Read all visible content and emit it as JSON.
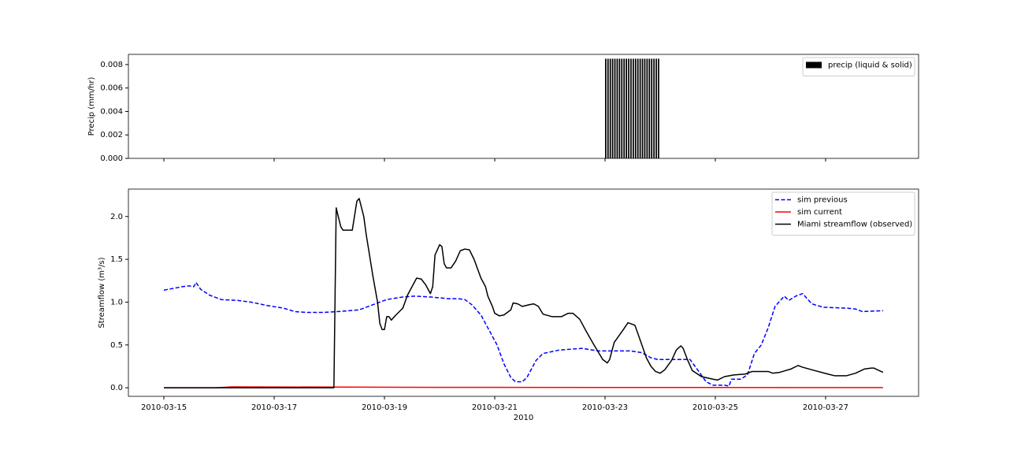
{
  "chart_data": [
    {
      "type": "bar",
      "ylabel": "Precip (mm/hr)",
      "xlim": [
        "2010-03-14 08:34",
        "2010-03-28 16:28"
      ],
      "xticks": [
        "2010-03-15",
        "2010-03-17",
        "2010-03-19",
        "2010-03-21",
        "2010-03-23",
        "2010-03-25",
        "2010-03-27"
      ],
      "show_xtick_labels": false,
      "ylim": [
        0,
        0.00887
      ],
      "yticks": [
        {
          "value": 0,
          "label": "0.000"
        },
        {
          "value": 0.002,
          "label": "0.002"
        },
        {
          "value": 0.004,
          "label": "0.004"
        },
        {
          "value": 0.006,
          "label": "0.006"
        },
        {
          "value": 0.008,
          "label": "0.008"
        }
      ],
      "legend": "upper right",
      "series": [
        {
          "name": "precip (liquid & solid)",
          "color": "#000000",
          "x": [
            "2010-03-23 00:00",
            "2010-03-23 01:00",
            "2010-03-23 02:00",
            "2010-03-23 03:00",
            "2010-03-23 04:00",
            "2010-03-23 05:00",
            "2010-03-23 06:00",
            "2010-03-23 07:00",
            "2010-03-23 08:00",
            "2010-03-23 09:00",
            "2010-03-23 10:00",
            "2010-03-23 11:00",
            "2010-03-23 12:00",
            "2010-03-23 13:00",
            "2010-03-23 14:00",
            "2010-03-23 15:00",
            "2010-03-23 16:00",
            "2010-03-23 17:00",
            "2010-03-23 18:00",
            "2010-03-23 19:00",
            "2010-03-23 20:00",
            "2010-03-23 21:00",
            "2010-03-23 22:00",
            "2010-03-23 23:00"
          ],
          "values": [
            0.0085,
            0.0085,
            0.0085,
            0.0085,
            0.0085,
            0.0085,
            0.0085,
            0.0085,
            0.0085,
            0.0085,
            0.0085,
            0.0085,
            0.0085,
            0.0085,
            0.0085,
            0.0085,
            0.0085,
            0.0085,
            0.0085,
            0.0085,
            0.0085,
            0.0085,
            0.0085,
            0.0085
          ]
        }
      ]
    },
    {
      "type": "line",
      "xlabel": "2010",
      "ylabel": "Streamflow (m³/s)",
      "xlim": [
        "2010-03-14 08:34",
        "2010-03-28 16:28"
      ],
      "xticks": [
        "2010-03-15",
        "2010-03-17",
        "2010-03-19",
        "2010-03-21",
        "2010-03-23",
        "2010-03-25",
        "2010-03-27"
      ],
      "show_xtick_labels": true,
      "ylim": [
        -0.1,
        2.32
      ],
      "yticks": [
        {
          "value": 0,
          "label": "0.0"
        },
        0.5,
        {
          "value": 1,
          "label": "1.0"
        },
        1.5,
        {
          "value": 2,
          "label": "2.0"
        }
      ],
      "legend": "upper right",
      "series": [
        {
          "name": "sim previous",
          "color": "#0000ff",
          "style": "dashed",
          "x": [
            "2010-03-15 00:00",
            "2010-03-15 08:00",
            "2010-03-15 11:00",
            "2010-03-15 13:00",
            "2010-03-15 14:00",
            "2010-03-15 16:00",
            "2010-03-15 20:00",
            "2010-03-16 01:00",
            "2010-03-16 08:00",
            "2010-03-16 14:00",
            "2010-03-16 21:00",
            "2010-03-17 04:00",
            "2010-03-17 09:00",
            "2010-03-17 14:00",
            "2010-03-17 21:00",
            "2010-03-18 04:00",
            "2010-03-18 13:00",
            "2010-03-18 18:00",
            "2010-03-19 01:00",
            "2010-03-19 08:00",
            "2010-03-19 13:00",
            "2010-03-19 20:00",
            "2010-03-20 04:00",
            "2010-03-20 08:00",
            "2010-03-20 11:00",
            "2010-03-20 14:00",
            "2010-03-20 18:00",
            "2010-03-20 21:00",
            "2010-03-21 01:00",
            "2010-03-21 04:00",
            "2010-03-21 07:00",
            "2010-03-21 09:00",
            "2010-03-21 12:00",
            "2010-03-21 14:00",
            "2010-03-21 18:00",
            "2010-03-21 21:00",
            "2010-03-22 04:00",
            "2010-03-22 14:00",
            "2010-03-22 21:00",
            "2010-03-23 11:00",
            "2010-03-23 16:00",
            "2010-03-23 20:00",
            "2010-03-23 23:00",
            "2010-03-24 08:00",
            "2010-03-24 13:00",
            "2010-03-24 16:00",
            "2010-03-24 20:00",
            "2010-03-24 23:00",
            "2010-03-25 04:00",
            "2010-03-25 06:00",
            "2010-03-25 07:00",
            "2010-03-25 11:00",
            "2010-03-25 14:00",
            "2010-03-25 17:00",
            "2010-03-25 20:00",
            "2010-03-25 23:00",
            "2010-03-26 02:00",
            "2010-03-26 06:00",
            "2010-03-26 08:00",
            "2010-03-26 11:00",
            "2010-03-26 14:00",
            "2010-03-26 18:00",
            "2010-03-26 23:00",
            "2010-03-27 09:00",
            "2010-03-27 13:00",
            "2010-03-27 16:00",
            "2010-03-28 01:00"
          ],
          "values": [
            1.14,
            1.18,
            1.19,
            1.18,
            1.23,
            1.15,
            1.08,
            1.03,
            1.02,
            1.0,
            0.96,
            0.93,
            0.89,
            0.88,
            0.88,
            0.89,
            0.91,
            0.96,
            1.03,
            1.06,
            1.07,
            1.06,
            1.04,
            1.04,
            1.03,
            0.97,
            0.85,
            0.7,
            0.5,
            0.28,
            0.12,
            0.07,
            0.07,
            0.12,
            0.32,
            0.4,
            0.44,
            0.46,
            0.43,
            0.43,
            0.41,
            0.35,
            0.33,
            0.33,
            0.33,
            0.22,
            0.07,
            0.03,
            0.03,
            0.02,
            0.1,
            0.1,
            0.15,
            0.4,
            0.5,
            0.7,
            0.95,
            1.07,
            1.02,
            1.07,
            1.1,
            0.98,
            0.94,
            0.93,
            0.92,
            0.89,
            0.9
          ]
        },
        {
          "name": "sim current",
          "color": "#ff0000",
          "style": "solid",
          "x": [
            "2010-03-15 00:00",
            "2010-03-15 22:00",
            "2010-03-16 06:00",
            "2010-03-18 03:00",
            "2010-03-20 00:00",
            "2010-03-28 01:00"
          ],
          "values": [
            0,
            0,
            0.01,
            0.008,
            0.005,
            0.002
          ]
        },
        {
          "name": "Miami streamflow (observed)",
          "color": "#000000",
          "style": "solid",
          "x": [
            "2010-03-15 00:00",
            "2010-03-18 02:00",
            "2010-03-18 03:00",
            "2010-03-18 05:00",
            "2010-03-18 06:00",
            "2010-03-18 10:00",
            "2010-03-18 12:00",
            "2010-03-18 13:00",
            "2010-03-18 15:00",
            "2010-03-18 16:00",
            "2010-03-18 19:00",
            "2010-03-18 21:00",
            "2010-03-18 22:00",
            "2010-03-18 23:00",
            "2010-03-19 00:00",
            "2010-03-19 01:00",
            "2010-03-19 02:00",
            "2010-03-19 03:00",
            "2010-03-19 05:00",
            "2010-03-19 08:00",
            "2010-03-19 10:00",
            "2010-03-19 14:00",
            "2010-03-19 16:00",
            "2010-03-19 18:00",
            "2010-03-19 20:00",
            "2010-03-19 21:00",
            "2010-03-19 22:00",
            "2010-03-20 00:00",
            "2010-03-20 01:00",
            "2010-03-20 02:00",
            "2010-03-20 03:00",
            "2010-03-20 05:00",
            "2010-03-20 07:00",
            "2010-03-20 09:00",
            "2010-03-20 11:00",
            "2010-03-20 13:00",
            "2010-03-20 15:00",
            "2010-03-20 18:00",
            "2010-03-20 20:00",
            "2010-03-20 21:00",
            "2010-03-20 23:00",
            "2010-03-21 00:00",
            "2010-03-21 02:00",
            "2010-03-21 04:00",
            "2010-03-21 07:00",
            "2010-03-21 08:00",
            "2010-03-21 10:00",
            "2010-03-21 12:00",
            "2010-03-21 15:00",
            "2010-03-21 17:00",
            "2010-03-21 19:00",
            "2010-03-21 21:00",
            "2010-03-22 01:00",
            "2010-03-22 05:00",
            "2010-03-22 08:00",
            "2010-03-22 10:00",
            "2010-03-22 13:00",
            "2010-03-22 16:00",
            "2010-03-22 19:00",
            "2010-03-22 23:00",
            "2010-03-23 01:00",
            "2010-03-23 02:00",
            "2010-03-23 04:00",
            "2010-03-23 08:00",
            "2010-03-23 10:00",
            "2010-03-23 13:00",
            "2010-03-23 15:00",
            "2010-03-23 18:00",
            "2010-03-23 20:00",
            "2010-03-23 22:00",
            "2010-03-24 00:00",
            "2010-03-24 02:00",
            "2010-03-24 05:00",
            "2010-03-24 07:00",
            "2010-03-24 09:00",
            "2010-03-24 10:00",
            "2010-03-24 12:00",
            "2010-03-24 14:00",
            "2010-03-24 18:00",
            "2010-03-24 23:00",
            "2010-03-25 01:00",
            "2010-03-25 04:00",
            "2010-03-25 08:00",
            "2010-03-25 13:00",
            "2010-03-25 16:00",
            "2010-03-25 23:00",
            "2010-03-26 01:00",
            "2010-03-26 04:00",
            "2010-03-26 09:00",
            "2010-03-26 12:00",
            "2010-03-26 14:00",
            "2010-03-26 18:00",
            "2010-03-27 01:00",
            "2010-03-27 04:00",
            "2010-03-27 09:00",
            "2010-03-27 13:00",
            "2010-03-27 17:00",
            "2010-03-27 20:00",
            "2010-03-27 21:00",
            "2010-03-28 01:00"
          ],
          "values": [
            0,
            0,
            2.1,
            1.88,
            1.84,
            1.84,
            2.18,
            2.21,
            2.0,
            1.8,
            1.3,
            1.0,
            0.75,
            0.68,
            0.68,
            0.83,
            0.83,
            0.79,
            0.85,
            0.93,
            1.08,
            1.28,
            1.27,
            1.2,
            1.1,
            1.18,
            1.55,
            1.67,
            1.65,
            1.45,
            1.4,
            1.4,
            1.48,
            1.6,
            1.62,
            1.61,
            1.5,
            1.28,
            1.18,
            1.07,
            0.95,
            0.87,
            0.84,
            0.85,
            0.91,
            0.99,
            0.98,
            0.95,
            0.97,
            0.98,
            0.95,
            0.86,
            0.83,
            0.83,
            0.87,
            0.87,
            0.8,
            0.65,
            0.51,
            0.33,
            0.29,
            0.33,
            0.53,
            0.68,
            0.76,
            0.73,
            0.58,
            0.35,
            0.25,
            0.19,
            0.17,
            0.21,
            0.32,
            0.44,
            0.49,
            0.46,
            0.32,
            0.2,
            0.13,
            0.1,
            0.09,
            0.13,
            0.15,
            0.16,
            0.19,
            0.19,
            0.17,
            0.18,
            0.22,
            0.26,
            0.24,
            0.21,
            0.16,
            0.14,
            0.14,
            0.17,
            0.22,
            0.23,
            0.23,
            0.18
          ]
        }
      ]
    }
  ]
}
